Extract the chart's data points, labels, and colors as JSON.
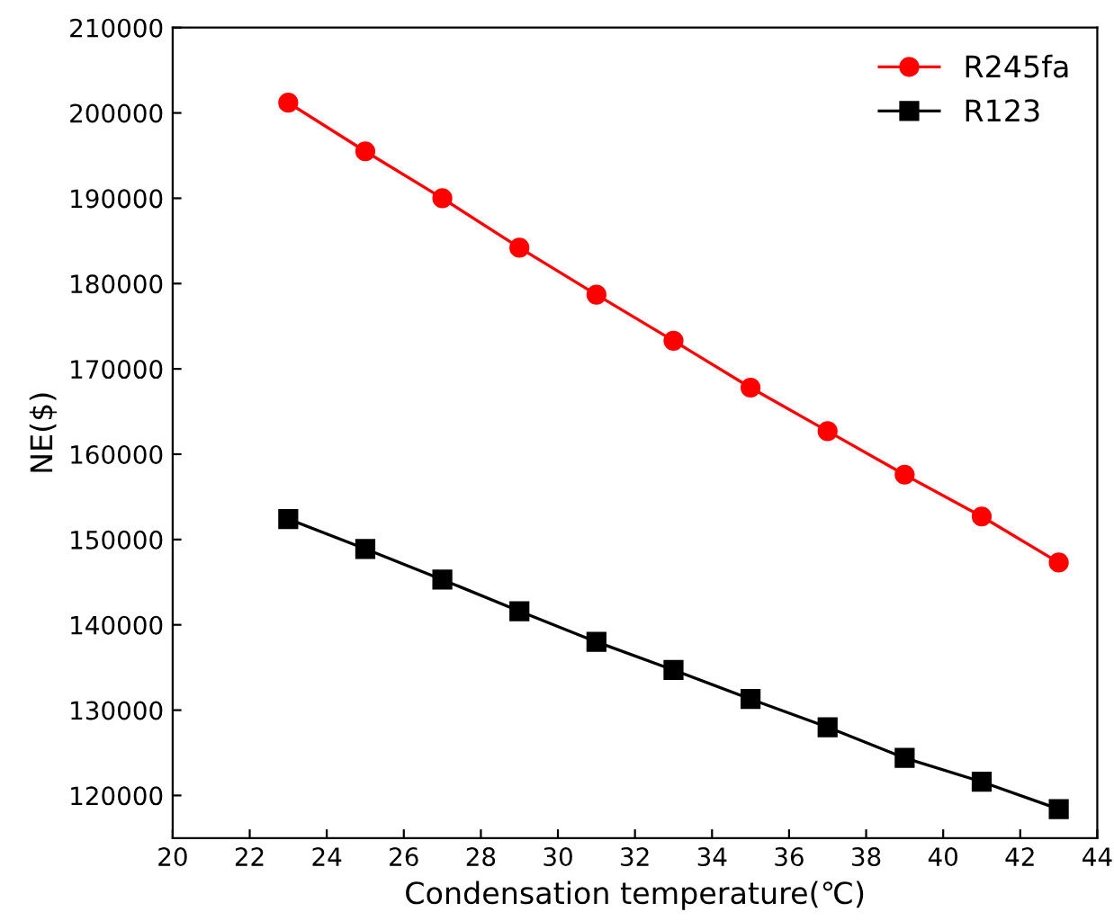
{
  "chart_data": {
    "type": "line",
    "xlabel": "Condensation temperature(℃)",
    "ylabel": "NE($)",
    "x": [
      23,
      25,
      27,
      29,
      31,
      33,
      35,
      37,
      39,
      41,
      43
    ],
    "series": [
      {
        "name": "R245fa",
        "color": "#ff0000",
        "marker": "circle",
        "values": [
          201200,
          195500,
          190000,
          184200,
          178700,
          173300,
          167800,
          162700,
          157600,
          152700,
          147300
        ]
      },
      {
        "name": "R123",
        "color": "#000000",
        "marker": "square",
        "values": [
          152400,
          148900,
          145300,
          141600,
          138000,
          134700,
          131300,
          128000,
          124400,
          121600,
          118400
        ]
      }
    ],
    "xlim": [
      20,
      44
    ],
    "xticks": [
      20,
      22,
      24,
      26,
      28,
      30,
      32,
      34,
      36,
      38,
      40,
      42,
      44
    ],
    "ylim": [
      115000,
      210000
    ],
    "yticks": [
      120000,
      130000,
      140000,
      150000,
      160000,
      170000,
      180000,
      190000,
      200000,
      210000
    ],
    "grid": false,
    "legend": "top right",
    "line_style": "solid"
  }
}
